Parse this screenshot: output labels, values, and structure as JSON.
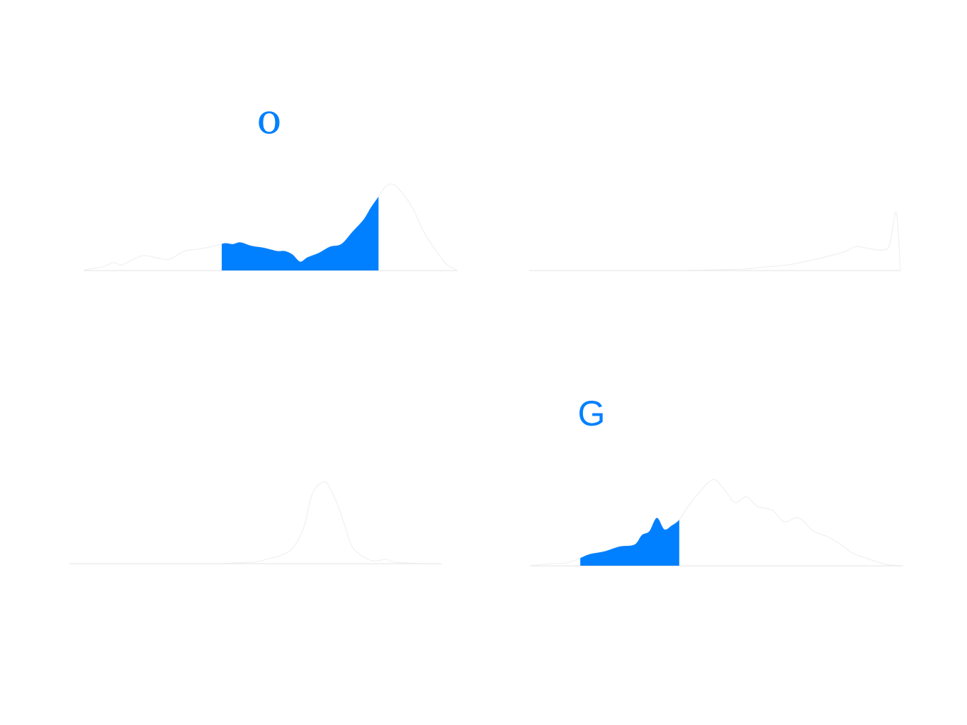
{
  "colors": {
    "accent": "#0080ff",
    "silhouette_fill": "#ffffff",
    "silhouette_stroke": "#f0f0f0",
    "baseline": "#ececec",
    "background": "#ffffff"
  },
  "chart_data": [
    {
      "type": "area",
      "glyph": "o",
      "highlight_range": [
        0.37,
        0.79
      ],
      "ylim": [
        0,
        1
      ],
      "x": [
        0.0,
        0.02,
        0.05,
        0.08,
        0.1,
        0.13,
        0.16,
        0.2,
        0.23,
        0.27,
        0.3,
        0.33,
        0.36,
        0.38,
        0.4,
        0.42,
        0.45,
        0.48,
        0.5,
        0.52,
        0.54,
        0.56,
        0.58,
        0.6,
        0.63,
        0.66,
        0.69,
        0.72,
        0.75,
        0.77,
        0.79,
        0.81,
        0.83,
        0.85,
        0.88,
        0.91,
        0.94,
        0.97,
        1.0
      ],
      "y": [
        0.0,
        0.02,
        0.04,
        0.09,
        0.06,
        0.12,
        0.17,
        0.14,
        0.13,
        0.22,
        0.24,
        0.26,
        0.29,
        0.31,
        0.3,
        0.32,
        0.28,
        0.26,
        0.24,
        0.22,
        0.22,
        0.18,
        0.1,
        0.15,
        0.2,
        0.27,
        0.3,
        0.44,
        0.58,
        0.72,
        0.84,
        0.96,
        0.98,
        0.9,
        0.72,
        0.45,
        0.25,
        0.08,
        0.0
      ]
    },
    {
      "type": "area",
      "glyph": "",
      "highlight_range": null,
      "ylim": [
        0,
        1
      ],
      "x": [
        0.0,
        0.1,
        0.2,
        0.3,
        0.4,
        0.5,
        0.58,
        0.62,
        0.66,
        0.7,
        0.75,
        0.8,
        0.85,
        0.88,
        0.92,
        0.95,
        0.97,
        0.98,
        0.99,
        1.0
      ],
      "y": [
        0.0,
        0.0,
        0.0,
        0.0,
        0.0,
        0.01,
        0.02,
        0.04,
        0.06,
        0.08,
        0.13,
        0.19,
        0.26,
        0.33,
        0.3,
        0.28,
        0.34,
        0.62,
        0.78,
        0.0
      ]
    },
    {
      "type": "area",
      "glyph": "",
      "highlight_range": null,
      "ylim": [
        0,
        1
      ],
      "x": [
        0.0,
        0.1,
        0.2,
        0.3,
        0.4,
        0.45,
        0.5,
        0.53,
        0.57,
        0.6,
        0.63,
        0.65,
        0.67,
        0.69,
        0.7,
        0.72,
        0.74,
        0.76,
        0.79,
        0.82,
        0.85,
        0.87,
        0.9,
        0.95,
        1.0
      ],
      "y": [
        0.0,
        0.0,
        0.0,
        0.0,
        0.0,
        0.01,
        0.02,
        0.05,
        0.1,
        0.18,
        0.42,
        0.78,
        0.92,
        0.95,
        0.88,
        0.7,
        0.45,
        0.2,
        0.08,
        0.03,
        0.05,
        0.02,
        0.01,
        0.0,
        0.0
      ]
    },
    {
      "type": "area",
      "glyph": "G",
      "highlight_range": [
        0.135,
        0.4
      ],
      "ylim": [
        0,
        1
      ],
      "x": [
        0.0,
        0.05,
        0.1,
        0.135,
        0.16,
        0.2,
        0.24,
        0.28,
        0.3,
        0.32,
        0.34,
        0.36,
        0.38,
        0.4,
        0.42,
        0.45,
        0.49,
        0.52,
        0.55,
        0.58,
        0.61,
        0.65,
        0.68,
        0.72,
        0.76,
        0.8,
        0.84,
        0.87,
        0.9,
        0.93,
        0.96,
        1.0
      ],
      "y": [
        0.0,
        0.02,
        0.03,
        0.08,
        0.12,
        0.15,
        0.2,
        0.22,
        0.32,
        0.36,
        0.5,
        0.38,
        0.42,
        0.48,
        0.6,
        0.75,
        0.9,
        0.8,
        0.66,
        0.72,
        0.62,
        0.58,
        0.46,
        0.5,
        0.36,
        0.3,
        0.2,
        0.12,
        0.08,
        0.04,
        0.01,
        0.0
      ]
    }
  ]
}
